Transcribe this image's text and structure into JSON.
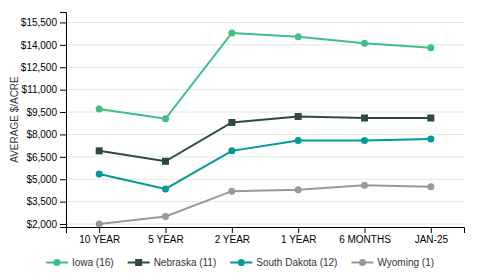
{
  "chart_data": {
    "type": "line",
    "categories": [
      "10 YEAR",
      "5 YEAR",
      "2 YEAR",
      "1 YEAR",
      "6 MONTHS",
      "JAN-25"
    ],
    "series": [
      {
        "name": "Iowa (16)",
        "color": "#3dbf85",
        "marker": "circle",
        "values": [
          9700,
          9050,
          14800,
          14550,
          14100,
          13800
        ]
      },
      {
        "name": "Nebraska (11)",
        "color": "#2d4a3e",
        "marker": "square",
        "values": [
          6900,
          6200,
          8800,
          9200,
          9100,
          9100
        ]
      },
      {
        "name": "South Dakota (12)",
        "color": "#009999",
        "marker": "circle",
        "values": [
          5350,
          4350,
          6900,
          7600,
          7600,
          7700
        ]
      },
      {
        "name": "Wyoming (1)",
        "color": "#999999",
        "marker": "circle",
        "values": [
          2000,
          2500,
          4200,
          4300,
          4600,
          4500
        ]
      }
    ],
    "ylabel": "AVERAGE $/ACRE",
    "ylim": [
      1800,
      16200
    ],
    "yticks": [
      {
        "value": 2000,
        "label": "$2,000"
      },
      {
        "value": 3500,
        "label": "$3,500"
      },
      {
        "value": 5000,
        "label": "$5,000"
      },
      {
        "value": 6500,
        "label": "$6,500"
      },
      {
        "value": 8000,
        "label": "$8,000"
      },
      {
        "value": 9500,
        "label": "$9,500"
      },
      {
        "value": 11000,
        "label": "$11,000"
      },
      {
        "value": 12500,
        "label": "$12,500"
      },
      {
        "value": 14000,
        "label": "$14,000"
      },
      {
        "value": 15500,
        "label": "$15,500"
      }
    ],
    "grid": true,
    "legend": "bottom"
  }
}
